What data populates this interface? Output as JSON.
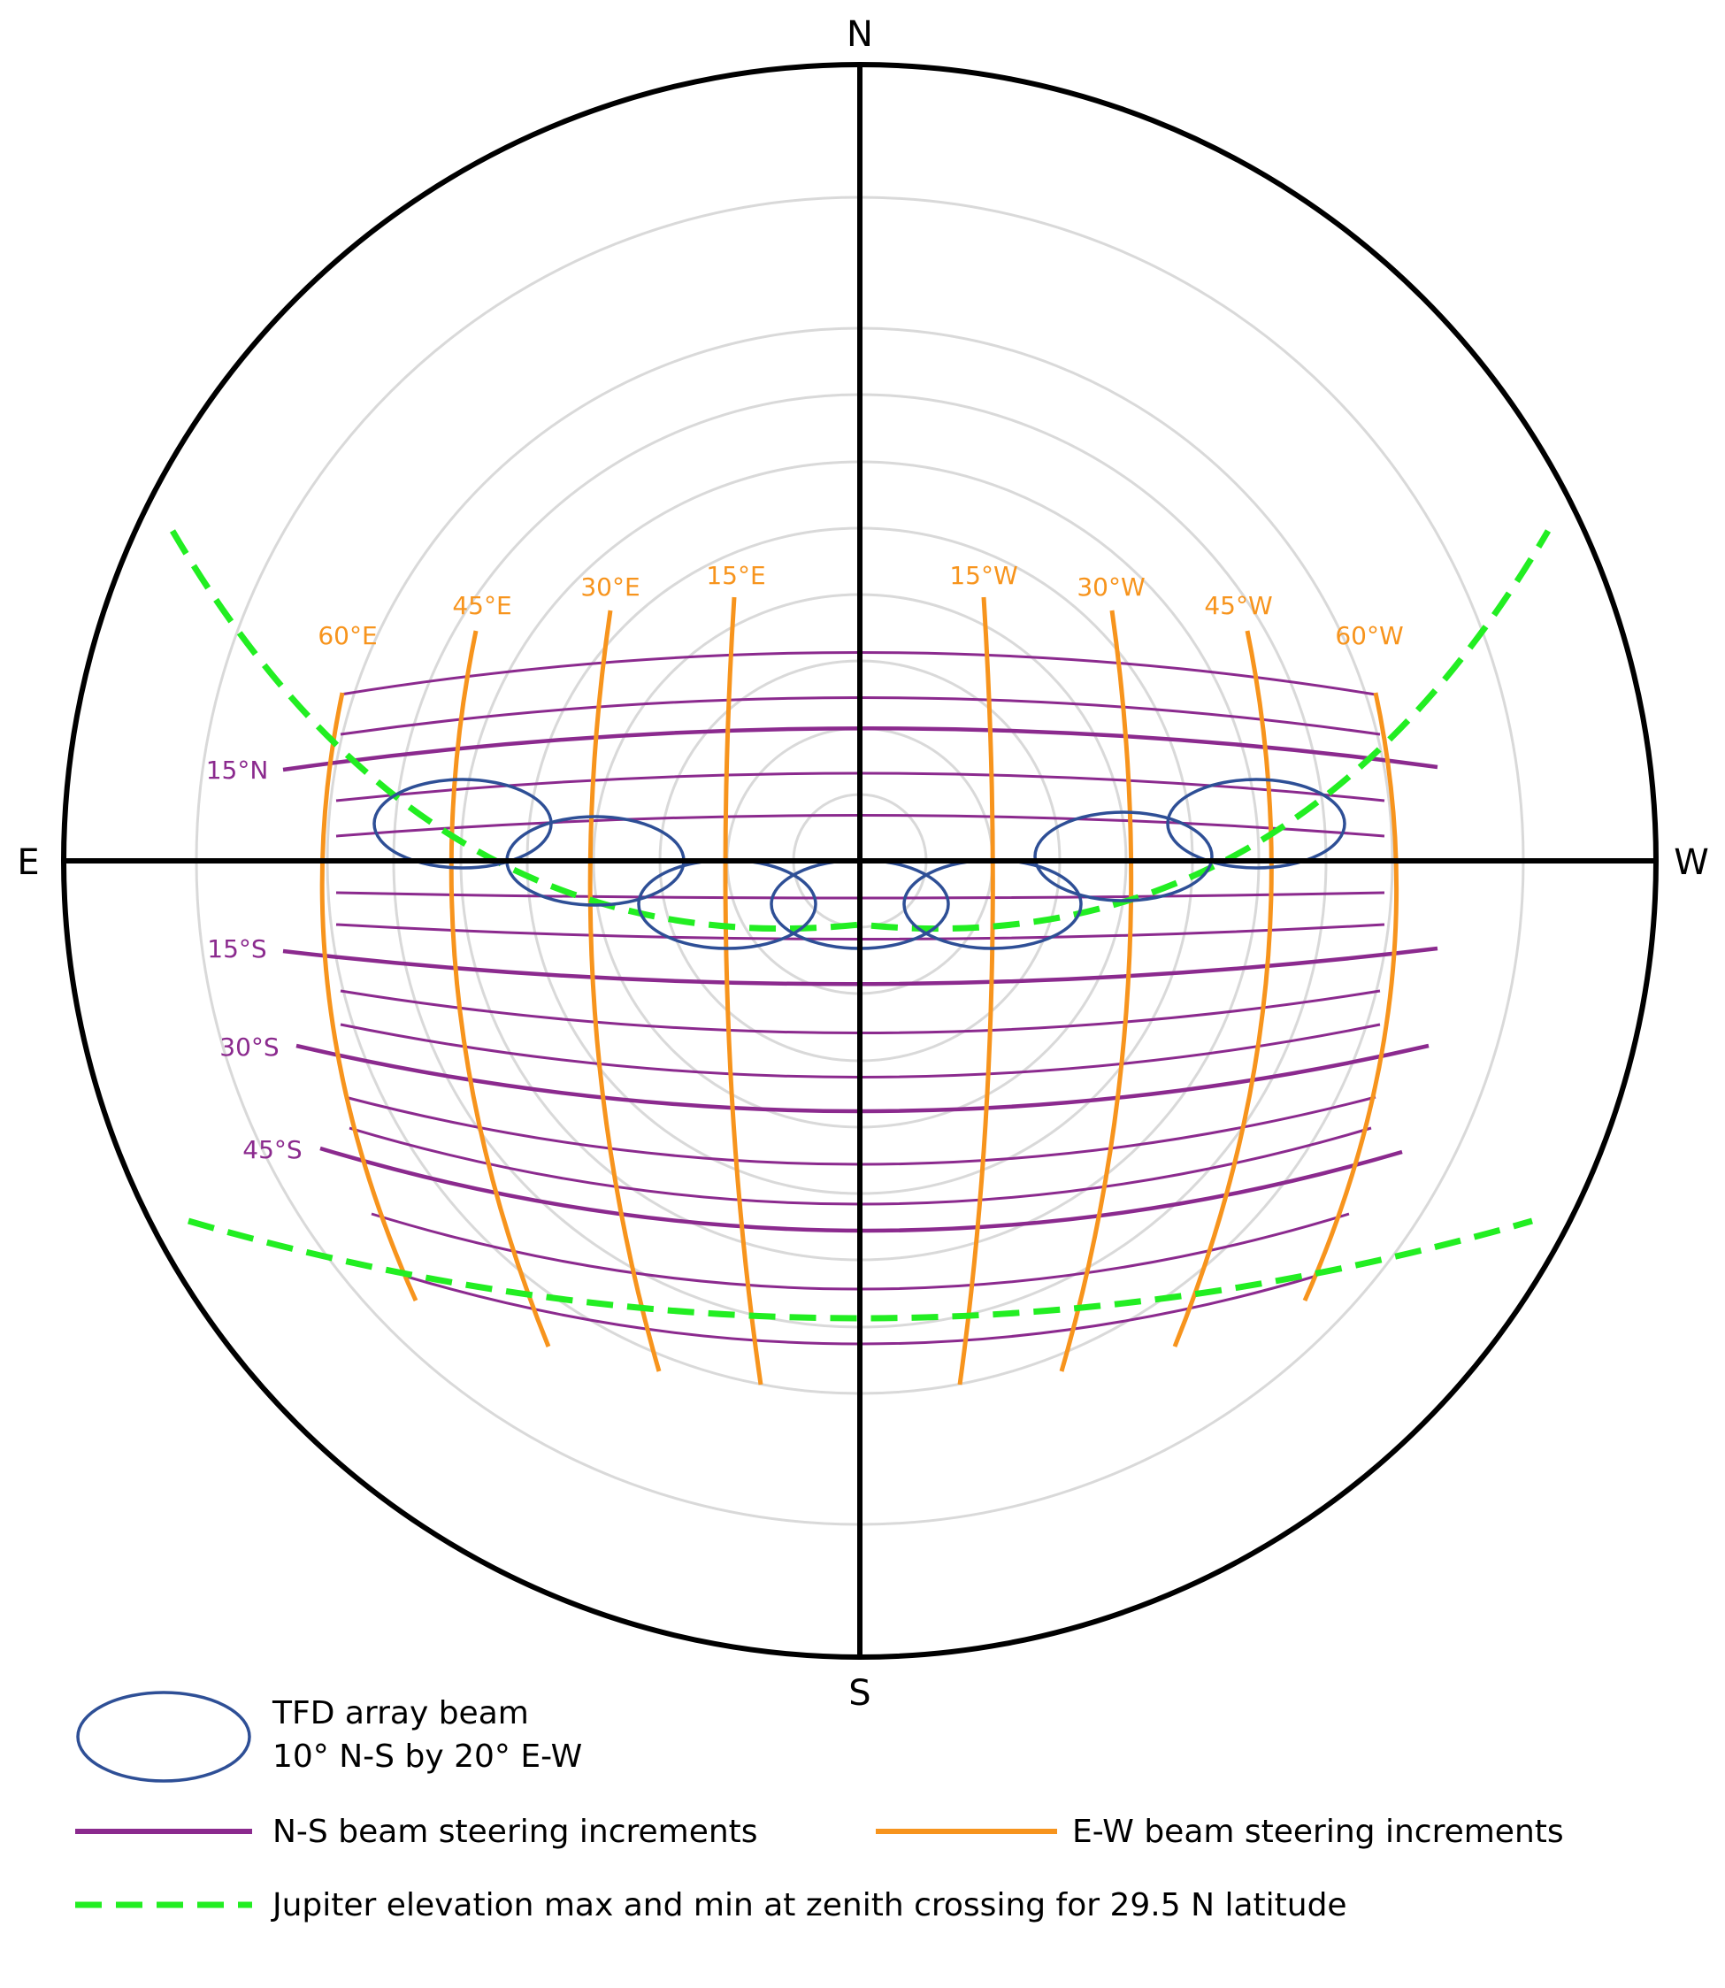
{
  "compass": {
    "north": "N",
    "south": "S",
    "east": "E",
    "west": "W"
  },
  "ew_labels": [
    "60°E",
    "45°E",
    "30°E",
    "15°E",
    "15°W",
    "30°W",
    "45°W",
    "60°W"
  ],
  "ns_labels": [
    "15°N",
    "15°S",
    "30°S",
    "45°S"
  ],
  "legend": {
    "beam_line1": "TFD array beam",
    "beam_line2": "10° N-S by 20° E-W",
    "ns_steering": "N-S beam steering increments",
    "ew_steering": "E-W beam steering increments",
    "jupiter": "Jupiter elevation max and min at zenith crossing for 29.5 N latitude"
  },
  "colors": {
    "ns_line": "#8B2A8E",
    "ew_line": "#F7941D",
    "beam": "#2E4F96",
    "jupiter": "#22EE22",
    "ring": "#D9D9D9",
    "axes": "#000000"
  }
}
